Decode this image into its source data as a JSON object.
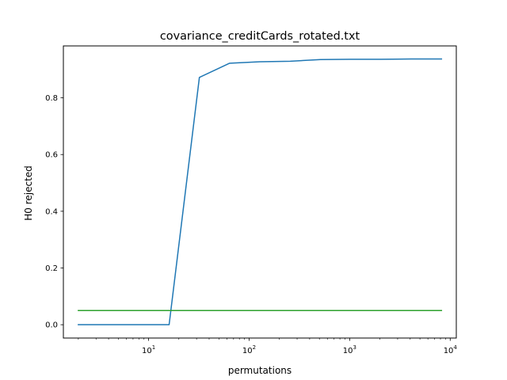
{
  "chart_data": {
    "type": "line",
    "title": "covariance_creditCards_rotated.txt",
    "xlabel": "permutations",
    "ylabel": "H0 rejected",
    "xscale": "log",
    "xlim": [
      1.42,
      11500
    ],
    "ylim": [
      -0.047,
      0.983
    ],
    "grid": false,
    "legend": "none",
    "x_ticks": [
      {
        "value": 10,
        "base": "10",
        "exp": "1"
      },
      {
        "value": 100,
        "base": "10",
        "exp": "2"
      },
      {
        "value": 1000,
        "base": "10",
        "exp": "3"
      },
      {
        "value": 10000,
        "base": "10",
        "exp": "4"
      }
    ],
    "y_ticks": [
      {
        "value": 0.0,
        "label": "0.0"
      },
      {
        "value": 0.2,
        "label": "0.2"
      },
      {
        "value": 0.4,
        "label": "0.4"
      },
      {
        "value": 0.6,
        "label": "0.6"
      },
      {
        "value": 0.8,
        "label": "0.8"
      }
    ],
    "series": [
      {
        "color": "#1f77b4",
        "x": [
          2,
          4,
          8,
          16,
          32,
          64,
          128,
          256,
          512,
          1024,
          2048,
          4096,
          8192
        ],
        "y": [
          0.0,
          0.0,
          0.0,
          0.0,
          0.872,
          0.922,
          0.927,
          0.929,
          0.935,
          0.936,
          0.936,
          0.937,
          0.937
        ]
      },
      {
        "color": "#2ca02c",
        "x": [
          2,
          8192
        ],
        "y": [
          0.05,
          0.05
        ]
      }
    ]
  }
}
